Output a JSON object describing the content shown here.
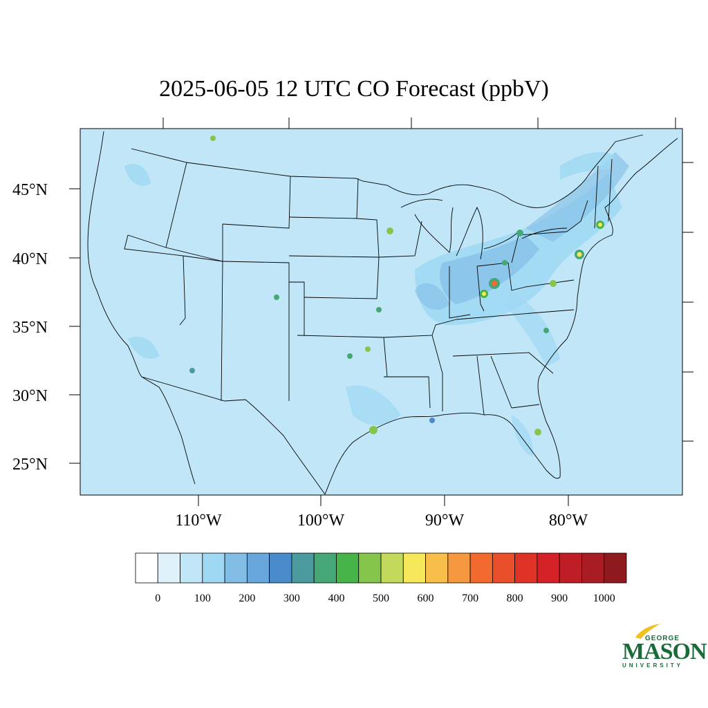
{
  "title": "2025-06-05 12 UTC CO Forecast (ppbV)",
  "map": {
    "background_color": "#c0e6f8",
    "lat_labels": [
      "45°N",
      "40°N",
      "35°N",
      "30°N",
      "25°N"
    ],
    "lon_labels": [
      "110°W",
      "100°W",
      "90°W",
      "80°W"
    ]
  },
  "colorbar": {
    "colors": [
      "#ffffff",
      "#dff2fb",
      "#c0e6f8",
      "#9fd8f3",
      "#82bde6",
      "#68a7dc",
      "#4a8bcb",
      "#4a9a9e",
      "#45a776",
      "#46b449",
      "#85c54c",
      "#c2d95b",
      "#f7e85b",
      "#f7bf4a",
      "#f69840",
      "#f36a2f",
      "#ea4f2b",
      "#e03327",
      "#d42027",
      "#c01e26",
      "#a91c23",
      "#8f1a1d"
    ],
    "labels": [
      "0",
      "100",
      "200",
      "300",
      "400",
      "500",
      "600",
      "700",
      "800",
      "900",
      "1000"
    ]
  },
  "logo": {
    "line1": "GEORGE",
    "line2": "MASON",
    "line3": "UNIVERSITY"
  }
}
